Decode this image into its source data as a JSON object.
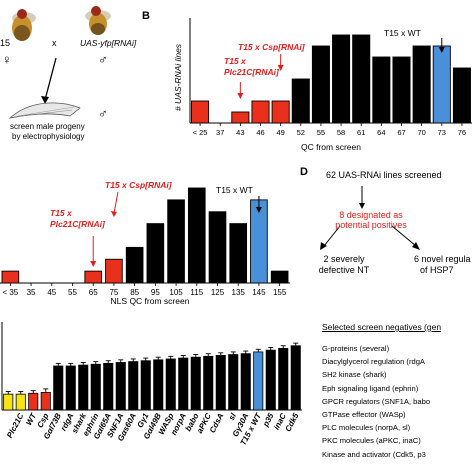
{
  "panelA": {
    "label_t15": "15",
    "label_cross": "x",
    "label_uas": "UAS-yfp[RNAi]",
    "text_screen_line1": "screen male progeny",
    "text_screen_line2": "by electrophysiology",
    "female_symbol": "♀",
    "male_symbol": "♂"
  },
  "panelB": {
    "letter": "B",
    "annot_plc": "T15 x Plc21C[RNAi]",
    "annot_csp": "T15 x Csp[RNAi]",
    "annot_wt": "T15 x WT"
  },
  "panelC": {
    "annot_csp": "T15 x Csp[RNAi]",
    "annot_plc": "T15 x Plc21C[RNAi]",
    "annot_wt": "T15 x WT"
  },
  "panelD": {
    "letter": "D",
    "line1": "62 UAS-RNAi lines screened",
    "line2a": "8 designated as",
    "line2b": "potential positives",
    "left_a": "2 severely",
    "left_b": "defective NT",
    "right_a": "6 novel regula",
    "right_b": "of HSP7"
  },
  "negatives": {
    "heading": "Selected screen negatives (gen",
    "items": [
      "G-proteins (several)",
      "Diacylglycerol regulation (rdgA",
      "SH2 kinase (shark)",
      "Eph signaling ligand (ephrin)",
      "GPCR regulators (SNF1A, babo",
      "GTPase effector (WASp)",
      "PLC molecules (norpA, sl)",
      "PKC molecules (aPKC, inaC)",
      "Kinase and activator (Cdk5, p3"
    ]
  },
  "colors": {
    "red": "#e8301c",
    "blue": "#4a90d9",
    "yellow": "#f5e418",
    "black": "#000000",
    "annotation_red": "#e02020"
  },
  "chart_data": [
    {
      "id": "qc_histogram",
      "type": "bar",
      "ylabel": "# UAS-RNAi lines",
      "xlabel": "QC from screen",
      "categories": [
        "< 25",
        "37",
        "43",
        "46",
        "49",
        "52",
        "55",
        "58",
        "61",
        "64",
        "67",
        "70",
        "73",
        "76"
      ],
      "values": [
        2,
        0,
        1,
        2,
        2,
        4,
        7,
        8,
        8,
        6,
        6,
        7,
        7,
        5
      ],
      "bar_colors": [
        "red",
        "none",
        "red",
        "red",
        "red",
        "black",
        "black",
        "black",
        "black",
        "black",
        "black",
        "black",
        "blue",
        "black"
      ],
      "tick_labels": [
        "< 25",
        "37",
        "43",
        "46",
        "49",
        "52",
        "55",
        "58",
        "61",
        "64",
        "67",
        "70",
        "73",
        "76"
      ],
      "ylim": [
        0,
        9
      ]
    },
    {
      "id": "nls_histogram",
      "type": "bar",
      "xlabel": "NLS QC from screen",
      "categories": [
        "< 35",
        "35",
        "45",
        "55",
        "65",
        "75",
        "85",
        "95",
        "105",
        "115",
        "125",
        "135",
        "145",
        "155"
      ],
      "values": [
        1,
        0,
        0,
        0,
        1,
        2,
        3,
        5,
        7,
        8,
        6,
        5,
        7,
        1
      ],
      "bar_colors": [
        "red",
        "none",
        "none",
        "none",
        "red",
        "red",
        "black",
        "black",
        "black",
        "black",
        "black",
        "black",
        "blue",
        "black"
      ],
      "ylim": [
        0,
        8
      ]
    },
    {
      "id": "gene_bars",
      "type": "bar",
      "categories": [
        "",
        "Plc21C",
        "WT",
        "Csp",
        "Gαl73B",
        "rdgA",
        "shark",
        "ephrin",
        "Gαl65A",
        "SNF1A",
        "Gαs60A",
        "Gγ1",
        "Gαl49B",
        "WASp",
        "norpA",
        "babo",
        "aPKC",
        "CdsA",
        "sl",
        "Gγ30A",
        "T15 x WT",
        "p35",
        "inaC",
        "Cdk5"
      ],
      "values": [
        0.18,
        0.18,
        0.19,
        0.2,
        0.5,
        0.5,
        0.51,
        0.52,
        0.53,
        0.54,
        0.55,
        0.56,
        0.57,
        0.58,
        0.59,
        0.6,
        0.61,
        0.62,
        0.63,
        0.64,
        0.66,
        0.68,
        0.7,
        0.73
      ],
      "errors": [
        0.03,
        0.03,
        0.03,
        0.04,
        0.03,
        0.03,
        0.03,
        0.03,
        0.03,
        0.03,
        0.03,
        0.03,
        0.03,
        0.03,
        0.03,
        0.03,
        0.03,
        0.03,
        0.03,
        0.03,
        0.03,
        0.03,
        0.03,
        0.03
      ],
      "bar_colors": [
        "yellow",
        "yellow",
        "red",
        "red",
        "black",
        "black",
        "black",
        "black",
        "black",
        "black",
        "black",
        "black",
        "black",
        "black",
        "black",
        "black",
        "black",
        "black",
        "black",
        "black",
        "blue",
        "black",
        "black",
        "black"
      ],
      "ylim": [
        0,
        1
      ]
    }
  ]
}
